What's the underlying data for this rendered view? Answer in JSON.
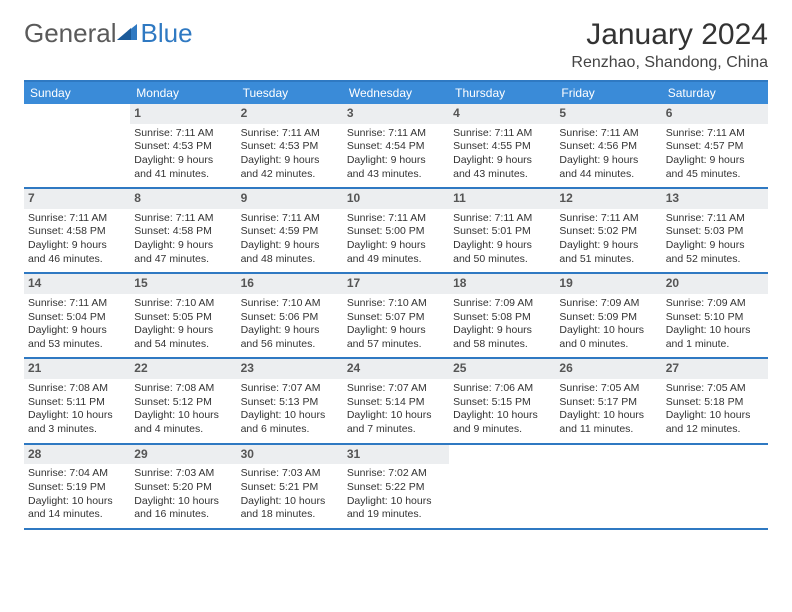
{
  "brand": {
    "part1": "General",
    "part2": "Blue"
  },
  "colors": {
    "brand_blue": "#2f79c2",
    "header_blue": "#3a8bd8",
    "daynum_bg": "#eceef0",
    "text": "#333333"
  },
  "title": "January 2024",
  "location": "Renzhao, Shandong, China",
  "dow": [
    "Sunday",
    "Monday",
    "Tuesday",
    "Wednesday",
    "Thursday",
    "Friday",
    "Saturday"
  ],
  "weeks": [
    [
      null,
      {
        "n": "1",
        "sr": "Sunrise: 7:11 AM",
        "ss": "Sunset: 4:53 PM",
        "d1": "Daylight: 9 hours",
        "d2": "and 41 minutes."
      },
      {
        "n": "2",
        "sr": "Sunrise: 7:11 AM",
        "ss": "Sunset: 4:53 PM",
        "d1": "Daylight: 9 hours",
        "d2": "and 42 minutes."
      },
      {
        "n": "3",
        "sr": "Sunrise: 7:11 AM",
        "ss": "Sunset: 4:54 PM",
        "d1": "Daylight: 9 hours",
        "d2": "and 43 minutes."
      },
      {
        "n": "4",
        "sr": "Sunrise: 7:11 AM",
        "ss": "Sunset: 4:55 PM",
        "d1": "Daylight: 9 hours",
        "d2": "and 43 minutes."
      },
      {
        "n": "5",
        "sr": "Sunrise: 7:11 AM",
        "ss": "Sunset: 4:56 PM",
        "d1": "Daylight: 9 hours",
        "d2": "and 44 minutes."
      },
      {
        "n": "6",
        "sr": "Sunrise: 7:11 AM",
        "ss": "Sunset: 4:57 PM",
        "d1": "Daylight: 9 hours",
        "d2": "and 45 minutes."
      }
    ],
    [
      {
        "n": "7",
        "sr": "Sunrise: 7:11 AM",
        "ss": "Sunset: 4:58 PM",
        "d1": "Daylight: 9 hours",
        "d2": "and 46 minutes."
      },
      {
        "n": "8",
        "sr": "Sunrise: 7:11 AM",
        "ss": "Sunset: 4:58 PM",
        "d1": "Daylight: 9 hours",
        "d2": "and 47 minutes."
      },
      {
        "n": "9",
        "sr": "Sunrise: 7:11 AM",
        "ss": "Sunset: 4:59 PM",
        "d1": "Daylight: 9 hours",
        "d2": "and 48 minutes."
      },
      {
        "n": "10",
        "sr": "Sunrise: 7:11 AM",
        "ss": "Sunset: 5:00 PM",
        "d1": "Daylight: 9 hours",
        "d2": "and 49 minutes."
      },
      {
        "n": "11",
        "sr": "Sunrise: 7:11 AM",
        "ss": "Sunset: 5:01 PM",
        "d1": "Daylight: 9 hours",
        "d2": "and 50 minutes."
      },
      {
        "n": "12",
        "sr": "Sunrise: 7:11 AM",
        "ss": "Sunset: 5:02 PM",
        "d1": "Daylight: 9 hours",
        "d2": "and 51 minutes."
      },
      {
        "n": "13",
        "sr": "Sunrise: 7:11 AM",
        "ss": "Sunset: 5:03 PM",
        "d1": "Daylight: 9 hours",
        "d2": "and 52 minutes."
      }
    ],
    [
      {
        "n": "14",
        "sr": "Sunrise: 7:11 AM",
        "ss": "Sunset: 5:04 PM",
        "d1": "Daylight: 9 hours",
        "d2": "and 53 minutes."
      },
      {
        "n": "15",
        "sr": "Sunrise: 7:10 AM",
        "ss": "Sunset: 5:05 PM",
        "d1": "Daylight: 9 hours",
        "d2": "and 54 minutes."
      },
      {
        "n": "16",
        "sr": "Sunrise: 7:10 AM",
        "ss": "Sunset: 5:06 PM",
        "d1": "Daylight: 9 hours",
        "d2": "and 56 minutes."
      },
      {
        "n": "17",
        "sr": "Sunrise: 7:10 AM",
        "ss": "Sunset: 5:07 PM",
        "d1": "Daylight: 9 hours",
        "d2": "and 57 minutes."
      },
      {
        "n": "18",
        "sr": "Sunrise: 7:09 AM",
        "ss": "Sunset: 5:08 PM",
        "d1": "Daylight: 9 hours",
        "d2": "and 58 minutes."
      },
      {
        "n": "19",
        "sr": "Sunrise: 7:09 AM",
        "ss": "Sunset: 5:09 PM",
        "d1": "Daylight: 10 hours",
        "d2": "and 0 minutes."
      },
      {
        "n": "20",
        "sr": "Sunrise: 7:09 AM",
        "ss": "Sunset: 5:10 PM",
        "d1": "Daylight: 10 hours",
        "d2": "and 1 minute."
      }
    ],
    [
      {
        "n": "21",
        "sr": "Sunrise: 7:08 AM",
        "ss": "Sunset: 5:11 PM",
        "d1": "Daylight: 10 hours",
        "d2": "and 3 minutes."
      },
      {
        "n": "22",
        "sr": "Sunrise: 7:08 AM",
        "ss": "Sunset: 5:12 PM",
        "d1": "Daylight: 10 hours",
        "d2": "and 4 minutes."
      },
      {
        "n": "23",
        "sr": "Sunrise: 7:07 AM",
        "ss": "Sunset: 5:13 PM",
        "d1": "Daylight: 10 hours",
        "d2": "and 6 minutes."
      },
      {
        "n": "24",
        "sr": "Sunrise: 7:07 AM",
        "ss": "Sunset: 5:14 PM",
        "d1": "Daylight: 10 hours",
        "d2": "and 7 minutes."
      },
      {
        "n": "25",
        "sr": "Sunrise: 7:06 AM",
        "ss": "Sunset: 5:15 PM",
        "d1": "Daylight: 10 hours",
        "d2": "and 9 minutes."
      },
      {
        "n": "26",
        "sr": "Sunrise: 7:05 AM",
        "ss": "Sunset: 5:17 PM",
        "d1": "Daylight: 10 hours",
        "d2": "and 11 minutes."
      },
      {
        "n": "27",
        "sr": "Sunrise: 7:05 AM",
        "ss": "Sunset: 5:18 PM",
        "d1": "Daylight: 10 hours",
        "d2": "and 12 minutes."
      }
    ],
    [
      {
        "n": "28",
        "sr": "Sunrise: 7:04 AM",
        "ss": "Sunset: 5:19 PM",
        "d1": "Daylight: 10 hours",
        "d2": "and 14 minutes."
      },
      {
        "n": "29",
        "sr": "Sunrise: 7:03 AM",
        "ss": "Sunset: 5:20 PM",
        "d1": "Daylight: 10 hours",
        "d2": "and 16 minutes."
      },
      {
        "n": "30",
        "sr": "Sunrise: 7:03 AM",
        "ss": "Sunset: 5:21 PM",
        "d1": "Daylight: 10 hours",
        "d2": "and 18 minutes."
      },
      {
        "n": "31",
        "sr": "Sunrise: 7:02 AM",
        "ss": "Sunset: 5:22 PM",
        "d1": "Daylight: 10 hours",
        "d2": "and 19 minutes."
      },
      null,
      null,
      null
    ]
  ]
}
